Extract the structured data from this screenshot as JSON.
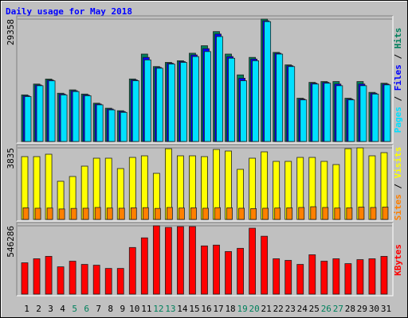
{
  "chart_data": [
    {
      "type": "bar",
      "title": "Daily usage for May 2018",
      "ylim": [
        0,
        29358
      ],
      "yticks": [
        29358
      ],
      "legend_separator": " / ",
      "series": [
        {
          "name": "Hits",
          "color": "#00805c",
          "values": [
            11184,
            13780,
            14979,
            11583,
            12383,
            11384,
            9187,
            7989,
            7390,
            15000,
            20970,
            17975,
            18973,
            19372,
            21170,
            22967,
            26362,
            20970,
            15977,
            20171,
            29358,
            21370,
            18374,
            10385,
            14180,
            14380,
            14380,
            10385,
            14380,
            11783,
            13980
          ]
        },
        {
          "name": "Files",
          "color": "#0000ff",
          "values": [
            10980,
            13560,
            14750,
            11380,
            12180,
            11180,
            8990,
            7790,
            7190,
            14780,
            20170,
            17770,
            18770,
            19170,
            20770,
            22270,
            25770,
            20370,
            15170,
            19770,
            28950,
            21170,
            18170,
            10180,
            13980,
            14180,
            13780,
            10180,
            13780,
            11580,
            13780
          ]
        },
        {
          "name": "Pages",
          "color": "#00e0ff",
          "values": [
            10780,
            13380,
            14550,
            11180,
            11980,
            10980,
            8790,
            7590,
            6990,
            14580,
            19570,
            17570,
            18570,
            18970,
            20370,
            21570,
            25170,
            19970,
            14570,
            19370,
            28750,
            20970,
            17970,
            9980,
            13780,
            13980,
            13380,
            9980,
            13380,
            11380,
            13580
          ]
        }
      ]
    },
    {
      "type": "bar",
      "ylim": [
        0,
        3835
      ],
      "yticks": [
        3835
      ],
      "legend_separator": " / ",
      "series": [
        {
          "name": "Visits",
          "color": "#ffff00",
          "values": [
            3366,
            3366,
            3494,
            2045,
            2301,
            2855,
            3281,
            3281,
            2727,
            3324,
            3409,
            2471,
            3790,
            3409,
            3409,
            3366,
            3750,
            3665,
            2685,
            3281,
            3622,
            3111,
            3111,
            3324,
            3324,
            3111,
            2940,
            3792,
            3835,
            3409,
            3579
          ]
        },
        {
          "name": "Sites",
          "color": "#ff8000",
          "values": [
            620,
            600,
            610,
            560,
            590,
            600,
            640,
            610,
            600,
            620,
            630,
            590,
            640,
            610,
            620,
            600,
            630,
            620,
            600,
            580,
            600,
            610,
            620,
            640,
            680,
            640,
            610,
            620,
            660,
            640,
            660
          ]
        }
      ]
    },
    {
      "type": "bar",
      "ylim": [
        0,
        546286
      ],
      "yticks": [
        546286
      ],
      "categories": [
        "1",
        "2",
        "3",
        "4",
        "5",
        "6",
        "7",
        "8",
        "9",
        "10",
        "11",
        "12",
        "13",
        "14",
        "15",
        "16",
        "17",
        "18",
        "19",
        "20",
        "21",
        "22",
        "23",
        "24",
        "25",
        "26",
        "27",
        "28",
        "29",
        "30",
        "31"
      ],
      "category_colors": [
        "#000000",
        "#000000",
        "#000000",
        "#000000",
        "#00805c",
        "#00805c",
        "#000000",
        "#000000",
        "#000000",
        "#000000",
        "#000000",
        "#00805c",
        "#00805c",
        "#000000",
        "#000000",
        "#000000",
        "#000000",
        "#000000",
        "#00805c",
        "#00805c",
        "#000000",
        "#000000",
        "#000000",
        "#000000",
        "#000000",
        "#00805c",
        "#00805c",
        "#000000",
        "#000000",
        "#000000",
        "#000000"
      ],
      "series": [
        {
          "name": "KBytes",
          "color": "#ff0000",
          "values": [
            250650,
            282800,
            302100,
            218500,
            263500,
            237800,
            231400,
            205700,
            205700,
            372800,
            449900,
            546286,
            533400,
            539800,
            540000,
            385600,
            392000,
            340600,
            366300,
            527000,
            462800,
            282800,
            270000,
            237800,
            314900,
            263500,
            282800,
            244000,
            276000,
            282800,
            302100
          ]
        }
      ]
    }
  ]
}
